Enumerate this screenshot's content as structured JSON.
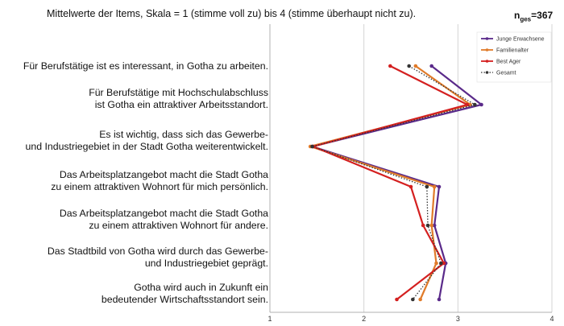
{
  "title": "Mittelwerte der Items, Skala = 1 (stimme voll zu) bis 4 (stimme überhaupt nicht zu).",
  "sample": {
    "prefix": "n",
    "sub": "ges",
    "value": "=367"
  },
  "chart_data": {
    "type": "line",
    "orientation": "horizontal-profile",
    "xlim": [
      1,
      4
    ],
    "xticks": [
      "1",
      "2",
      "3",
      "4"
    ],
    "grid": "vertical",
    "legend_position": "top-right",
    "categories": [
      [
        "Für Berufstätige ist es interessant, in Gotha zu arbeiten."
      ],
      [
        "Für Berufstätige mit Hochschulabschluss",
        "ist Gotha ein attraktiver Arbeitsstandort."
      ],
      [
        "Es ist wichtig, dass sich das Gewerbe-",
        "und Industriegebiet in der Stadt Gotha weiterentwickelt."
      ],
      [
        "Das Arbeitsplatzangebot macht die Stadt Gotha",
        "zu einem attraktiven Wohnort für mich persönlich."
      ],
      [
        "Das Arbeitsplatzangebot macht die Stadt Gotha",
        "zu einem attraktiven Wohnort für andere."
      ],
      [
        "Das Stadtbild von Gotha wird durch das Gewerbe-",
        "und Industriegebiet geprägt."
      ],
      [
        "Gotha wird auch in Zukunft ein",
        "bedeutender Wirtschaftsstandort sein."
      ]
    ],
    "series": [
      {
        "name": "Junge Erwachsene",
        "color": "#5a2a8a",
        "style": "solid",
        "values": [
          2.72,
          3.25,
          1.45,
          2.8,
          2.75,
          2.87,
          2.8
        ]
      },
      {
        "name": "Familienalter",
        "color": "#e07b2a",
        "style": "solid",
        "values": [
          2.55,
          3.13,
          1.43,
          2.75,
          2.72,
          2.77,
          2.6
        ]
      },
      {
        "name": "Best Ager",
        "color": "#d42020",
        "style": "solid",
        "values": [
          2.28,
          3.1,
          1.46,
          2.5,
          2.63,
          2.85,
          2.35
        ]
      },
      {
        "name": "Gesamt",
        "color": "#333333",
        "style": "dotted",
        "values": [
          2.48,
          3.18,
          1.45,
          2.67,
          2.68,
          2.82,
          2.52
        ]
      }
    ]
  }
}
